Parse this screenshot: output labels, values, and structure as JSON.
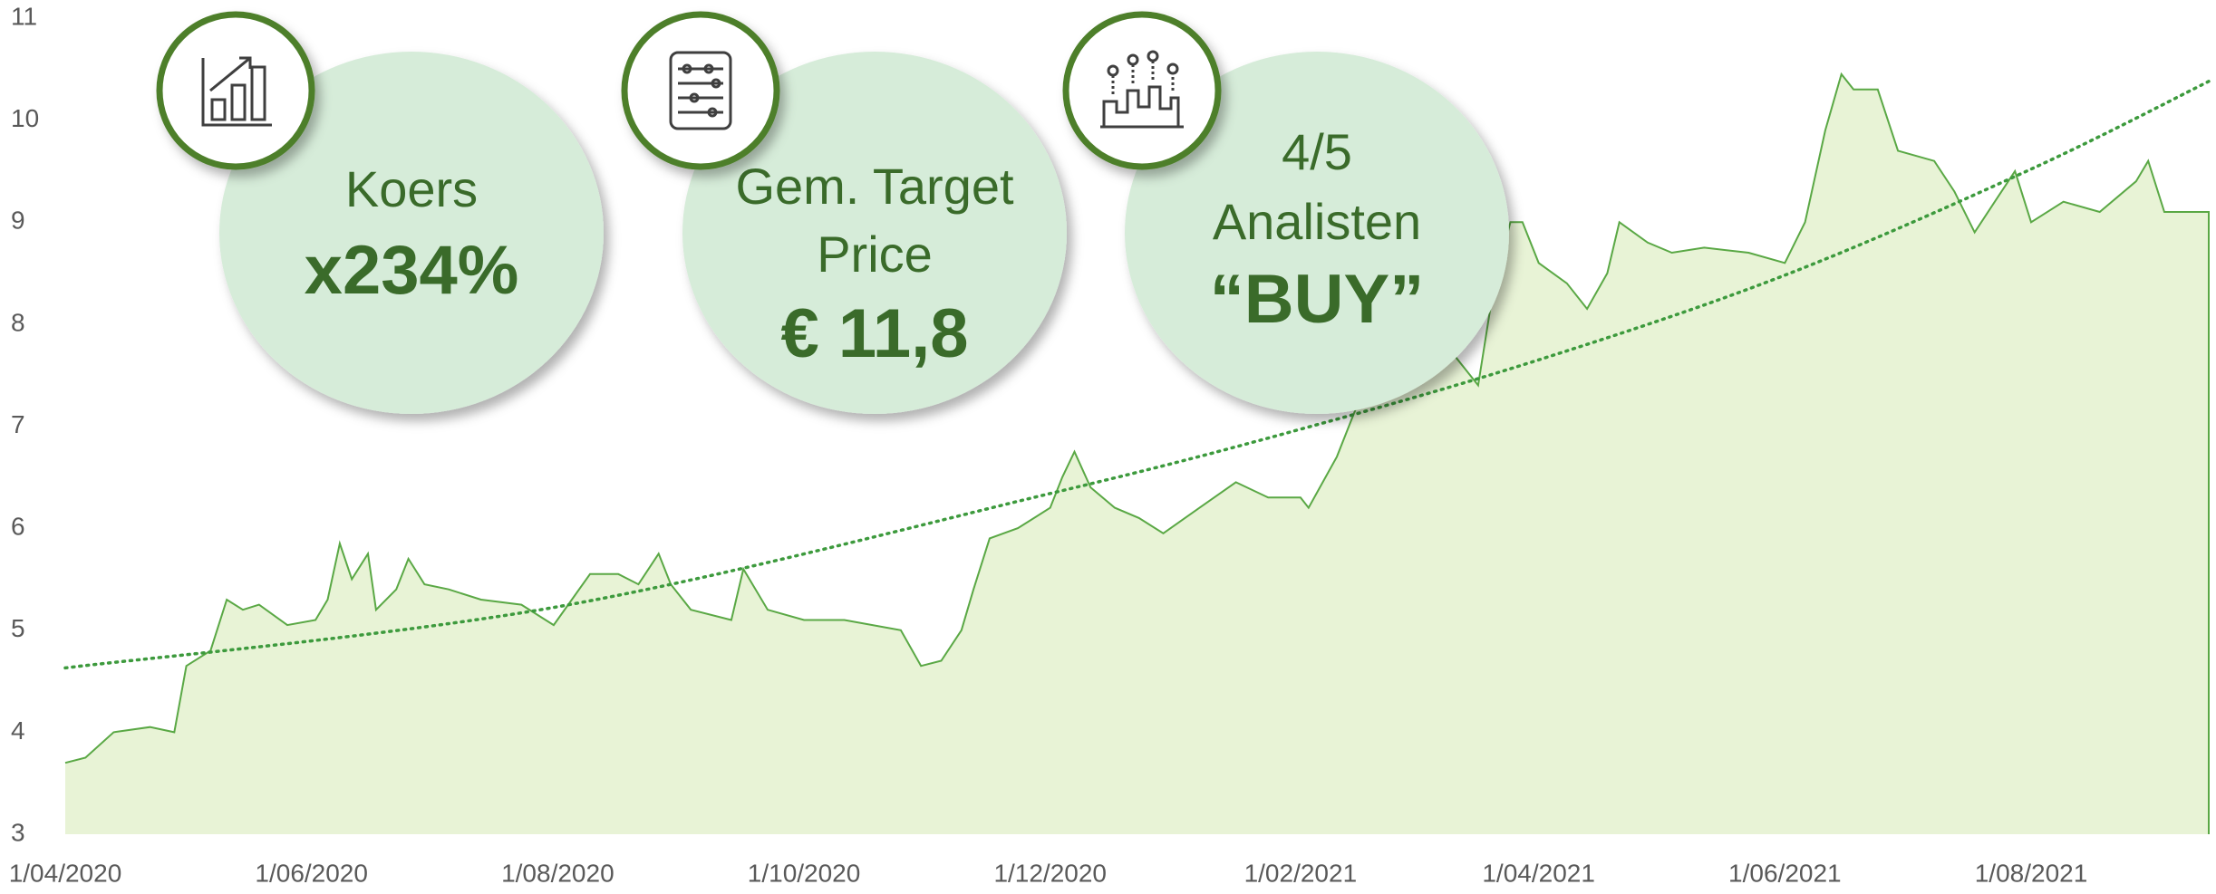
{
  "chart_data": {
    "type": "area",
    "x": [
      "2020-04-01",
      "2020-04-06",
      "2020-04-13",
      "2020-04-22",
      "2020-04-28",
      "2020-05-01",
      "2020-05-07",
      "2020-05-11",
      "2020-05-15",
      "2020-05-19",
      "2020-05-26",
      "2020-06-02",
      "2020-06-05",
      "2020-06-08",
      "2020-06-11",
      "2020-06-15",
      "2020-06-17",
      "2020-06-22",
      "2020-06-25",
      "2020-06-29",
      "2020-07-05",
      "2020-07-13",
      "2020-07-23",
      "2020-07-31",
      "2020-08-09",
      "2020-08-16",
      "2020-08-21",
      "2020-08-26",
      "2020-08-29",
      "2020-09-03",
      "2020-09-13",
      "2020-09-16",
      "2020-09-22",
      "2020-10-01",
      "2020-10-11",
      "2020-10-25",
      "2020-10-30",
      "2020-11-04",
      "2020-11-09",
      "2020-11-12",
      "2020-11-16",
      "2020-11-23",
      "2020-12-01",
      "2020-12-04",
      "2020-12-07",
      "2020-12-11",
      "2020-12-17",
      "2020-12-23",
      "2020-12-29",
      "2021-01-07",
      "2021-01-16",
      "2021-01-24",
      "2021-02-01",
      "2021-02-03",
      "2021-02-10",
      "2021-02-15",
      "2021-02-25",
      "2021-03-11",
      "2021-03-17",
      "2021-03-21",
      "2021-03-25",
      "2021-03-28",
      "2021-04-01",
      "2021-04-08",
      "2021-04-13",
      "2021-04-18",
      "2021-04-21",
      "2021-04-28",
      "2021-05-04",
      "2021-05-12",
      "2021-05-23",
      "2021-06-01",
      "2021-06-06",
      "2021-06-11",
      "2021-06-15",
      "2021-06-18",
      "2021-06-24",
      "2021-06-29",
      "2021-07-08",
      "2021-07-13",
      "2021-07-18",
      "2021-07-23",
      "2021-07-28",
      "2021-08-01",
      "2021-08-09",
      "2021-08-18",
      "2021-08-27",
      "2021-08-30",
      "2021-09-03",
      "2021-09-08",
      "2021-09-14"
    ],
    "values": [
      3.7,
      3.75,
      4.0,
      4.05,
      4.0,
      4.65,
      4.8,
      5.3,
      5.2,
      5.25,
      5.05,
      5.1,
      5.3,
      5.85,
      5.5,
      5.75,
      5.2,
      5.4,
      5.7,
      5.45,
      5.4,
      5.3,
      5.25,
      5.05,
      5.55,
      5.55,
      5.45,
      5.75,
      5.45,
      5.2,
      5.1,
      5.6,
      5.2,
      5.1,
      5.1,
      5.0,
      4.65,
      4.7,
      5.0,
      5.4,
      5.9,
      6.0,
      6.2,
      6.5,
      6.75,
      6.4,
      6.2,
      6.1,
      5.95,
      6.2,
      6.45,
      6.3,
      6.3,
      6.2,
      6.7,
      7.2,
      7.5,
      7.7,
      7.4,
      8.4,
      9.0,
      9.0,
      8.6,
      8.4,
      8.15,
      8.5,
      9.0,
      8.8,
      8.7,
      8.75,
      8.7,
      8.6,
      9.0,
      9.9,
      10.45,
      10.3,
      10.3,
      9.7,
      9.6,
      9.3,
      8.9,
      9.2,
      9.5,
      9.0,
      9.2,
      9.1,
      9.4,
      9.6,
      9.1,
      9.1,
      9.1
    ],
    "color": "#5aa845",
    "fill": "#e8f3d6",
    "trendline": {
      "x": [
        "2020-04-01",
        "2020-08-01",
        "2020-12-01",
        "2021-02-01",
        "2021-04-01",
        "2021-06-01",
        "2021-08-01",
        "2021-09-14"
      ],
      "values": [
        4.63,
        5.23,
        6.34,
        6.97,
        7.65,
        8.48,
        9.52,
        10.38
      ],
      "color": "#3d9a3d"
    },
    "xlim": [
      "2020-04-01",
      "2021-09-14"
    ],
    "xticks": [
      {
        "value": "2020-04-01",
        "label": "1/04/2020"
      },
      {
        "value": "2020-06-01",
        "label": "1/06/2020"
      },
      {
        "value": "2020-08-01",
        "label": "1/08/2020"
      },
      {
        "value": "2020-10-01",
        "label": "1/10/2020"
      },
      {
        "value": "2020-12-01",
        "label": "1/12/2020"
      },
      {
        "value": "2021-02-01",
        "label": "1/02/2021"
      },
      {
        "value": "2021-04-01",
        "label": "1/04/2021"
      },
      {
        "value": "2021-06-01",
        "label": "1/06/2021"
      },
      {
        "value": "2021-08-01",
        "label": "1/08/2021"
      }
    ],
    "ylim": [
      3,
      11
    ],
    "yticks": [
      3,
      4,
      5,
      6,
      7,
      8,
      9,
      10,
      11
    ],
    "grid": false
  },
  "cards": [
    {
      "lines": [
        "Koers"
      ],
      "highlight": "x234%"
    },
    {
      "lines": [
        "Gem. Target",
        "Price"
      ],
      "highlight": "€ 11,8"
    },
    {
      "lines": [
        "4/5",
        "Analisten"
      ],
      "highlight": "“BUY”"
    }
  ]
}
